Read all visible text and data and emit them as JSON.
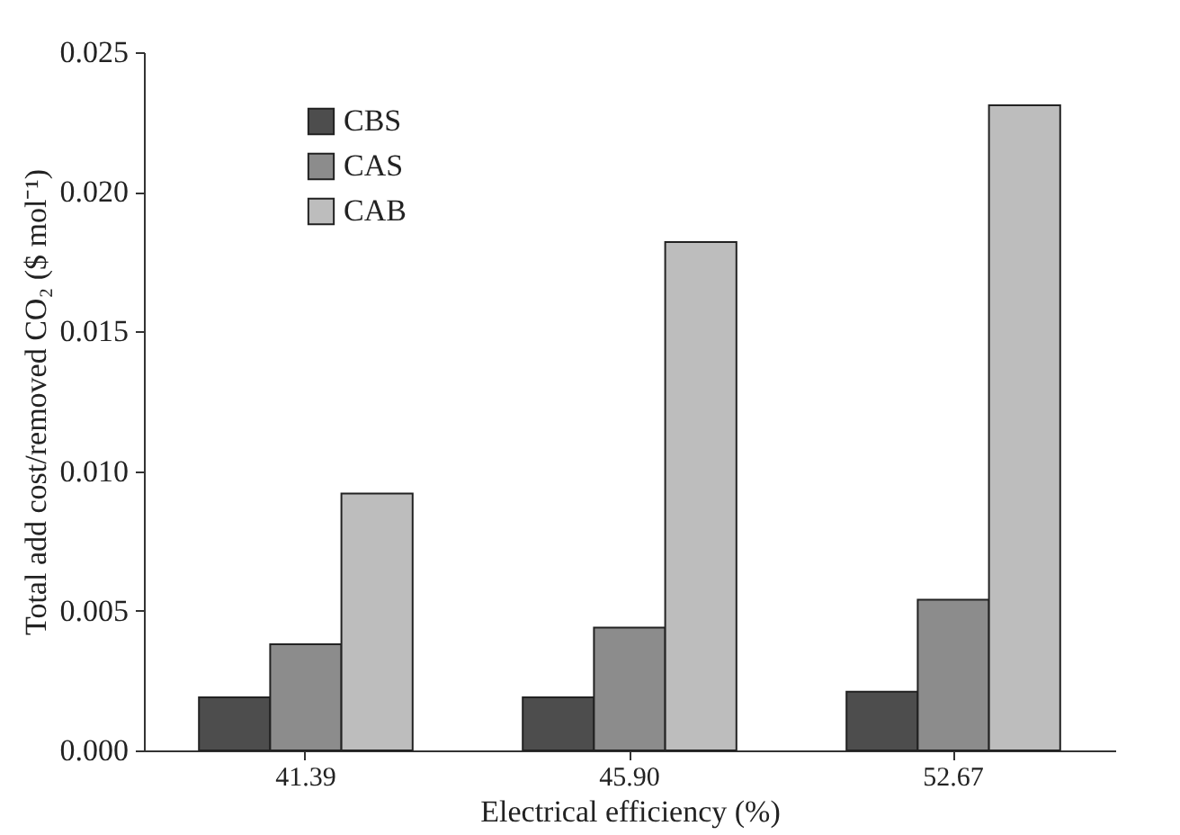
{
  "chart_data": {
    "type": "bar",
    "xlabel": "Electrical efficiency (%)",
    "ylabel": "Total add cost/removed CO₂ ($ mol⁻¹)",
    "categories": [
      "41.39",
      "45.90",
      "52.67"
    ],
    "series": [
      {
        "name": "CBS",
        "color": "#4d4d4d",
        "values": [
          0.0019,
          0.0019,
          0.0021
        ]
      },
      {
        "name": "CAS",
        "color": "#8c8c8c",
        "values": [
          0.0038,
          0.0044,
          0.0054
        ]
      },
      {
        "name": "CAB",
        "color": "#bdbdbd",
        "values": [
          0.0092,
          0.0182,
          0.0231
        ]
      }
    ],
    "ylim": [
      0,
      0.025
    ],
    "yticks": [
      {
        "value": 0,
        "label": "0.000"
      },
      {
        "value": 0.005,
        "label": "0.005"
      },
      {
        "value": 0.01,
        "label": "0.010"
      },
      {
        "value": 0.015,
        "label": "0.015"
      },
      {
        "value": 0.02,
        "label": "0.020"
      },
      {
        "value": 0.025,
        "label": "0.025"
      }
    ],
    "grid": false,
    "legend": "top left"
  }
}
